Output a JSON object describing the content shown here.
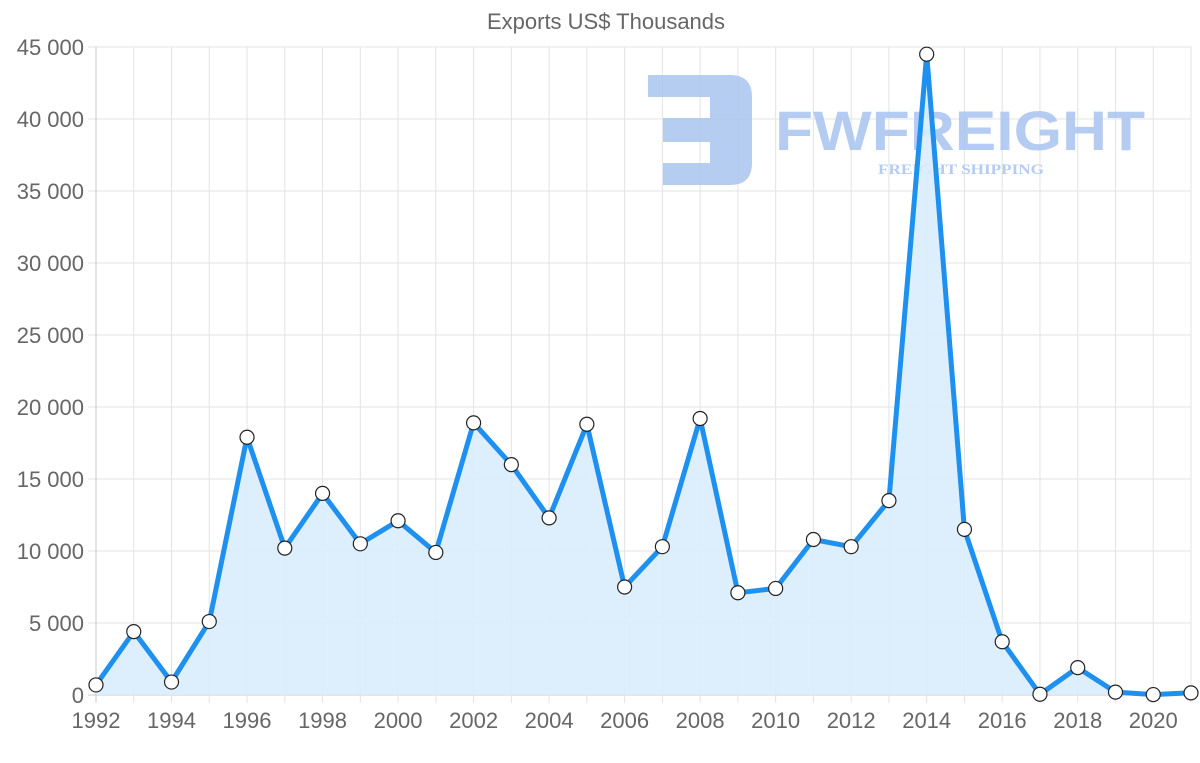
{
  "chart_data": {
    "type": "area",
    "title": "Exports US$ Thousands",
    "xlabel": "",
    "ylabel": "",
    "categories": [
      "1992",
      "1993",
      "1994",
      "1995",
      "1996",
      "1997",
      "1998",
      "1999",
      "2000",
      "2001",
      "2002",
      "2003",
      "2004",
      "2005",
      "2006",
      "2007",
      "2008",
      "2009",
      "2010",
      "2011",
      "2012",
      "2013",
      "2014",
      "2015",
      "2016",
      "2017",
      "2018",
      "2019",
      "2020",
      "2021"
    ],
    "series": [
      {
        "name": "Exports",
        "values": [
          700,
          4400,
          900,
          5100,
          17900,
          10200,
          14000,
          10500,
          12100,
          9900,
          18900,
          16000,
          12300,
          18800,
          7500,
          10300,
          19200,
          7100,
          7400,
          10800,
          10300,
          13500,
          44500,
          11500,
          3700,
          50,
          1900,
          200,
          30,
          150
        ]
      }
    ],
    "ylim": [
      0,
      45000
    ],
    "yticks": [
      "0",
      "5 000",
      "10 000",
      "15 000",
      "20 000",
      "25 000",
      "30 000",
      "35 000",
      "40 000",
      "45 000"
    ],
    "xticks": [
      "1992",
      "1994",
      "1996",
      "1998",
      "2000",
      "2002",
      "2004",
      "2006",
      "2008",
      "2010",
      "2012",
      "2014",
      "2016",
      "2018",
      "2020"
    ],
    "grid": true,
    "legend": "none",
    "colors": {
      "line": "#1e90f0",
      "fill": "#d9ecfc",
      "point_fill": "#ffffff",
      "point_stroke": "#222222"
    }
  },
  "watermark": {
    "brand": "FWFREIGHT",
    "tagline": "FREIGHT SHIPPING",
    "color": "#a9c4f0"
  }
}
